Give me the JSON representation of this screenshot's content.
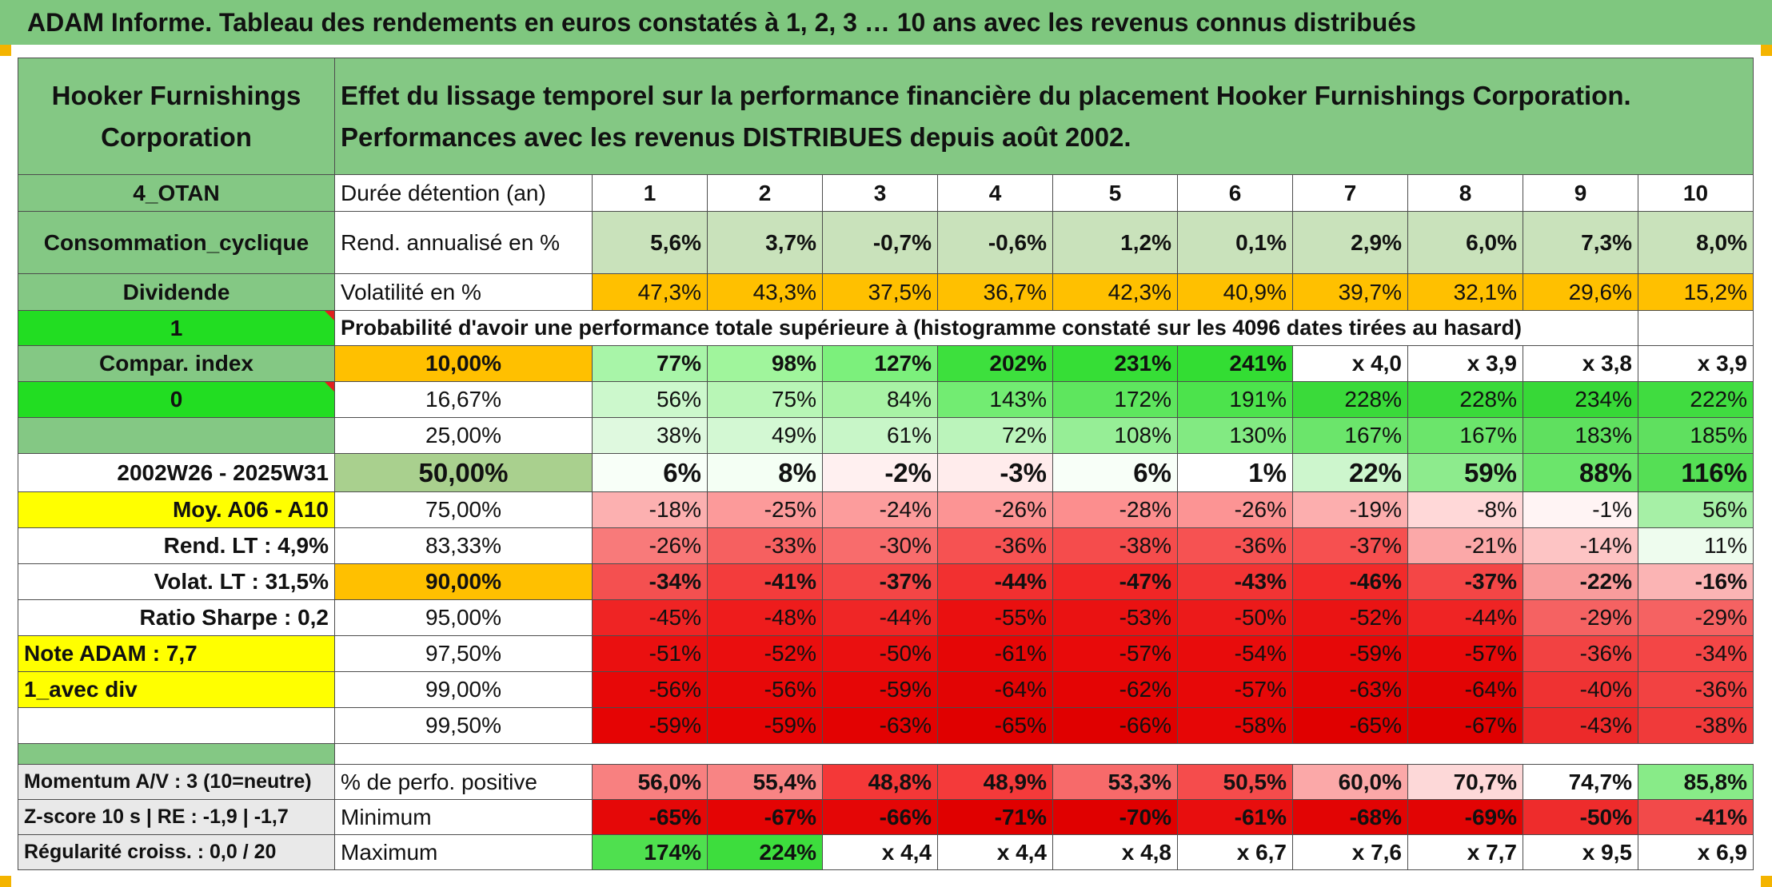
{
  "header": {
    "title": "ADAM Informe. Tableau des rendements en euros constatés à 1, 2, 3 … 10 ans avec les revenus connus distribués"
  },
  "left": {
    "company": "Hooker Furnishings Corporation",
    "code": "4_OTAN",
    "sector": "Consommation_cyclique",
    "type": "Dividende",
    "flag_value": "1",
    "compar_label": "Compar. index",
    "compar_value": "0",
    "period": "2002W26 - 2025W31",
    "moy": "Moy. A06 - A10",
    "rend_lt": "Rend. LT :   4,9%",
    "volat_lt": "Volat. LT :   31,5%",
    "sharpe": "Ratio Sharpe :   0,2",
    "note": "Note ADAM : 7,7",
    "mode": "1_avec div"
  },
  "description": "Effet du lissage temporel sur la performance financière du placement Hooker Furnishings Corporation. Performances avec les revenus DISTRIBUES depuis août 2002.",
  "durations": {
    "label": "Durée détention (an)",
    "values": [
      "1",
      "2",
      "3",
      "4",
      "5",
      "6",
      "7",
      "8",
      "9",
      "10"
    ]
  },
  "rend": {
    "label": "Rend. annualisé en %",
    "values": [
      "5,6%",
      "3,7%",
      "-0,7%",
      "-0,6%",
      "1,2%",
      "0,1%",
      "2,9%",
      "6,0%",
      "7,3%",
      "8,0%"
    ]
  },
  "volat": {
    "label": "Volatilité en %",
    "values": [
      "47,3%",
      "43,3%",
      "37,5%",
      "36,7%",
      "42,3%",
      "40,9%",
      "39,7%",
      "32,1%",
      "29,6%",
      "15,2%"
    ]
  },
  "prob_title": "Probabilité d'avoir une performance totale supérieure à (histogramme constaté sur les 4096 dates tirées au hasard)",
  "prob_rows": [
    {
      "pct": "10,00%",
      "values": [
        "77%",
        "98%",
        "127%",
        "202%",
        "231%",
        "241%",
        "x 4,0",
        "x 3,9",
        "x 3,8",
        "x 3,9"
      ]
    },
    {
      "pct": "16,67%",
      "values": [
        "56%",
        "75%",
        "84%",
        "143%",
        "172%",
        "191%",
        "228%",
        "228%",
        "234%",
        "222%"
      ]
    },
    {
      "pct": "25,00%",
      "values": [
        "38%",
        "49%",
        "61%",
        "72%",
        "108%",
        "130%",
        "167%",
        "167%",
        "183%",
        "185%"
      ]
    },
    {
      "pct": "50,00%",
      "values": [
        "6%",
        "8%",
        "-2%",
        "-3%",
        "6%",
        "1%",
        "22%",
        "59%",
        "88%",
        "116%"
      ]
    },
    {
      "pct": "75,00%",
      "values": [
        "-18%",
        "-25%",
        "-24%",
        "-26%",
        "-28%",
        "-26%",
        "-19%",
        "-8%",
        "-1%",
        "56%"
      ]
    },
    {
      "pct": "83,33%",
      "values": [
        "-26%",
        "-33%",
        "-30%",
        "-36%",
        "-38%",
        "-36%",
        "-37%",
        "-21%",
        "-14%",
        "11%"
      ]
    },
    {
      "pct": "90,00%",
      "values": [
        "-34%",
        "-41%",
        "-37%",
        "-44%",
        "-47%",
        "-43%",
        "-46%",
        "-37%",
        "-22%",
        "-16%"
      ]
    },
    {
      "pct": "95,00%",
      "values": [
        "-45%",
        "-48%",
        "-44%",
        "-55%",
        "-53%",
        "-50%",
        "-52%",
        "-44%",
        "-29%",
        "-29%"
      ]
    },
    {
      "pct": "97,50%",
      "values": [
        "-51%",
        "-52%",
        "-50%",
        "-61%",
        "-57%",
        "-54%",
        "-59%",
        "-57%",
        "-36%",
        "-34%"
      ]
    },
    {
      "pct": "99,00%",
      "values": [
        "-56%",
        "-56%",
        "-59%",
        "-64%",
        "-62%",
        "-57%",
        "-63%",
        "-64%",
        "-40%",
        "-36%"
      ]
    },
    {
      "pct": "99,50%",
      "values": [
        "-59%",
        "-59%",
        "-63%",
        "-65%",
        "-66%",
        "-58%",
        "-65%",
        "-67%",
        "-43%",
        "-38%"
      ]
    }
  ],
  "bottom": {
    "momentum": "Momentum A/V : 3 (10=neutre)",
    "zscore": "Z-score 10 s | RE : -1,9 | -1,7",
    "regularite": "Régularité croiss. : 0,0 / 20",
    "positive": {
      "label": "% de perfo. positive",
      "values": [
        "56,0%",
        "55,4%",
        "48,8%",
        "48,9%",
        "53,3%",
        "50,5%",
        "60,0%",
        "70,7%",
        "74,7%",
        "85,8%"
      ]
    },
    "minimum": {
      "label": "Minimum",
      "values": [
        "-65%",
        "-67%",
        "-66%",
        "-71%",
        "-70%",
        "-61%",
        "-68%",
        "-69%",
        "-50%",
        "-41%"
      ]
    },
    "maximum": {
      "label": "Maximum",
      "values": [
        "174%",
        "224%",
        "x 4,4",
        "x 4,4",
        "x 4,8",
        "x 6,7",
        "x 7,6",
        "x 7,7",
        "x 9,5",
        "x 6,9"
      ]
    }
  },
  "colors": {
    "rend": [
      "#c9e2bb",
      "#c9e2bb",
      "#c9e2bb",
      "#c9e2bb",
      "#c9e2bb",
      "#c9e2bb",
      "#c9e2bb",
      "#c9e2bb",
      "#c9e2bb",
      "#c9e2bb"
    ],
    "volat": [
      "#ffc000",
      "#ffc000",
      "#ffc000",
      "#ffc000",
      "#ffc000",
      "#ffc000",
      "#ffc000",
      "#ffc000",
      "#ffc000",
      "#ffc000"
    ],
    "prob_pct": [
      "#ffc000",
      "#ffffff",
      "#ffffff",
      "#a9d08e",
      "#ffffff",
      "#ffffff",
      "#ffc000",
      "#ffffff",
      "#ffffff",
      "#ffffff",
      "#ffffff"
    ],
    "prob": [
      [
        "#a8f5a8",
        "#a0f59c",
        "#7cf07c",
        "#3de03d",
        "#36de36",
        "#33dd33",
        "#ffffff",
        "#ffffff",
        "#ffffff",
        "#ffffff"
      ],
      [
        "#ccf8cc",
        "#b8f6b6",
        "#a8f3a5",
        "#72ec72",
        "#5ee65e",
        "#4ce34c",
        "#3ada3a",
        "#3ada3a",
        "#37d837",
        "#40dc40"
      ],
      [
        "#dff9df",
        "#d3f8d3",
        "#c8f6c8",
        "#bbf4bb",
        "#96ee96",
        "#82ea82",
        "#6be56b",
        "#6be56b",
        "#5fe05f",
        "#5fe05f"
      ],
      [
        "#f8fff8",
        "#f4fff4",
        "#fff0f0",
        "#ffecec",
        "#f8fff8",
        "#ffffff",
        "#cdf6cd",
        "#8deb8d",
        "#6be56b",
        "#55df55"
      ],
      [
        "#fcb0b0",
        "#fc9a9a",
        "#fc9c9c",
        "#fc9494",
        "#fc8e8e",
        "#fc9494",
        "#fcaeae",
        "#ffd8d8",
        "#fff4f4",
        "#a6f0a6"
      ],
      [
        "#f87a7a",
        "#f66060",
        "#f86c6c",
        "#f65252",
        "#f54c4c",
        "#f65252",
        "#f65050",
        "#fba8a8",
        "#fdc4c4",
        "#eefcee"
      ],
      [
        "#f45050",
        "#f33c3c",
        "#f44646",
        "#f23030",
        "#f12626",
        "#f23434",
        "#f22a2a",
        "#f44646",
        "#f99c9c",
        "#fbb4b4"
      ],
      [
        "#ef2424",
        "#ee1c1c",
        "#ef2626",
        "#ea1010",
        "#ea1212",
        "#ec1a1a",
        "#ea1414",
        "#ef2424",
        "#f56262",
        "#f56262"
      ],
      [
        "#ea1010",
        "#ea0e0e",
        "#ea1010",
        "#e50606",
        "#e80a0a",
        "#e80c0c",
        "#e60808",
        "#e80a0a",
        "#f24242",
        "#f34646"
      ],
      [
        "#e70808",
        "#e70808",
        "#e60606",
        "#e20404",
        "#e40404",
        "#e70808",
        "#e30404",
        "#e20404",
        "#ef3232",
        "#f24242"
      ],
      [
        "#e50404",
        "#e50404",
        "#e30202",
        "#e00000",
        "#e00000",
        "#e60606",
        "#e00000",
        "#df0000",
        "#ec2a2a",
        "#f03a3a"
      ]
    ],
    "positive": [
      "#f88080",
      "#f88484",
      "#f43838",
      "#f43a3a",
      "#f76a6a",
      "#f54c4c",
      "#fba8a8",
      "#fdd8d8",
      "#ffffff",
      "#88eb88"
    ],
    "minimum": [
      "#e50808",
      "#e40404",
      "#e40606",
      "#e00000",
      "#e00000",
      "#e80e0e",
      "#e20404",
      "#e20404",
      "#ee2c2c",
      "#f24a4a"
    ],
    "maximum": [
      "#4fe04f",
      "#3ddd3d",
      "#ffffff",
      "#ffffff",
      "#ffffff",
      "#ffffff",
      "#ffffff",
      "#ffffff",
      "#ffffff",
      "#ffffff"
    ]
  }
}
